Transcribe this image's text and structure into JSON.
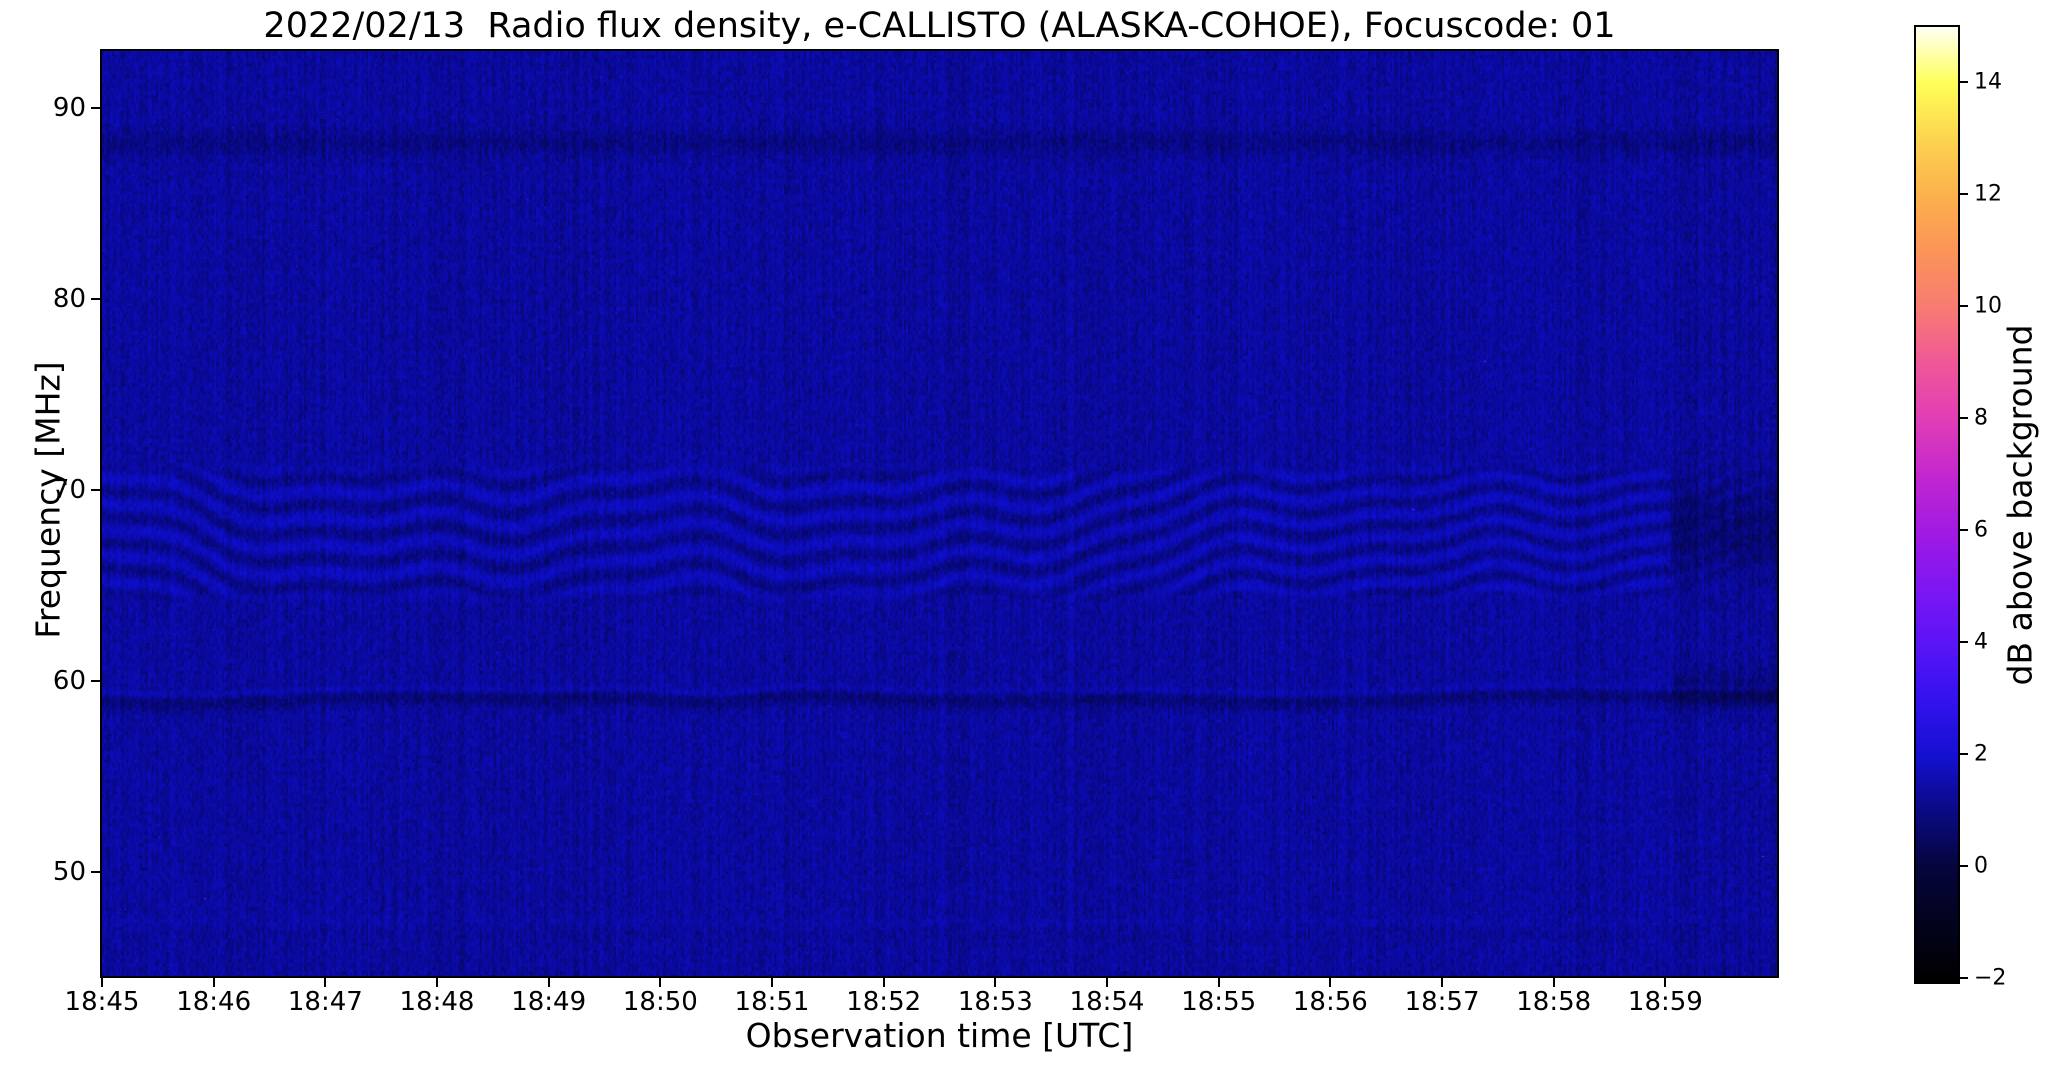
{
  "title": "2022/02/13  Radio flux density, e-CALLISTO (ALASKA-COHOE), Focuscode: 01",
  "chart_data": {
    "type": "heatmap",
    "subtype": "radio-spectrogram",
    "title": "2022/02/13  Radio flux density, e-CALLISTO (ALASKA-COHOE), Focuscode: 01",
    "xlabel": "Observation time [UTC]",
    "ylabel": "Frequency [MHz]",
    "x_ticks": [
      "18:45",
      "18:46",
      "18:47",
      "18:48",
      "18:49",
      "18:50",
      "18:51",
      "18:52",
      "18:53",
      "18:54",
      "18:55",
      "18:56",
      "18:57",
      "18:58",
      "18:59"
    ],
    "x_range": [
      "18:45",
      "19:00"
    ],
    "y_ticks": [
      90,
      80,
      70,
      60,
      50
    ],
    "ylim": [
      44.6,
      93.0
    ],
    "grid": false,
    "background_db": 0.9,
    "noise_db": 0.5,
    "colorbar": {
      "label": "dB above background",
      "clim": [
        -2,
        15
      ],
      "colormap": "gnuplot2",
      "ticks": [
        {
          "value": 14,
          "label": "14"
        },
        {
          "value": 12,
          "label": "12"
        },
        {
          "value": 10,
          "label": "10"
        },
        {
          "value": 8,
          "label": "8"
        },
        {
          "value": 6,
          "label": "6"
        },
        {
          "value": 4,
          "label": "4"
        },
        {
          "value": 2,
          "label": "2"
        },
        {
          "value": 0,
          "label": "0"
        },
        {
          "value": -2,
          "label": "−2"
        }
      ],
      "gradient": [
        {
          "pos": 0,
          "color": "#000000"
        },
        {
          "pos": 11.8,
          "color": "#05053a"
        },
        {
          "pos": 17.6,
          "color": "#0a0a80"
        },
        {
          "pos": 23.5,
          "color": "#1410cf"
        },
        {
          "pos": 29.4,
          "color": "#3212ee"
        },
        {
          "pos": 35.3,
          "color": "#5a14f6"
        },
        {
          "pos": 41.2,
          "color": "#7e16f3"
        },
        {
          "pos": 47.1,
          "color": "#a11ae3"
        },
        {
          "pos": 52.9,
          "color": "#c227cf"
        },
        {
          "pos": 58.8,
          "color": "#e13db6"
        },
        {
          "pos": 64.7,
          "color": "#ef5798"
        },
        {
          "pos": 70.6,
          "color": "#f87b72"
        },
        {
          "pos": 76.5,
          "color": "#fb9458"
        },
        {
          "pos": 82.4,
          "color": "#fcb14d"
        },
        {
          "pos": 88.2,
          "color": "#fdd350"
        },
        {
          "pos": 94.1,
          "color": "#feff58"
        },
        {
          "pos": 97.6,
          "color": "#ffffb4"
        },
        {
          "pos": 100,
          "color": "#fffff4"
        }
      ]
    },
    "features": [
      {
        "kind": "wavy_interference_band",
        "freq_range_mhz": [
          64.8,
          70.8
        ],
        "stripe_amplitude_db": 0.7,
        "description": "quasi-horizontal wavy interference fringes between ~65 and ~71 MHz across the whole time span"
      },
      {
        "kind": "narrowband_line",
        "freq_mhz": 59.6,
        "bright_db": 0.3,
        "dark_db": -0.5,
        "description": "slightly undulating bright line with dark absorption band just below ~59.6 MHz"
      },
      {
        "kind": "dark_band",
        "freq_mhz": 88.2,
        "description": "faint dark horizontal band near 88 MHz"
      },
      {
        "kind": "faint_line",
        "freq_mhz": 47.4,
        "description": "very faint brighter line near 47.4 MHz"
      },
      {
        "kind": "dark_patch",
        "time_range": [
          "18:59",
          "19:00"
        ],
        "freq_ranges_mhz": [
          [
            66.5,
            69.5
          ],
          [
            59.0,
            60.2
          ]
        ],
        "description": "darker rectangular patches in the last minute where the fringes fade"
      }
    ]
  }
}
